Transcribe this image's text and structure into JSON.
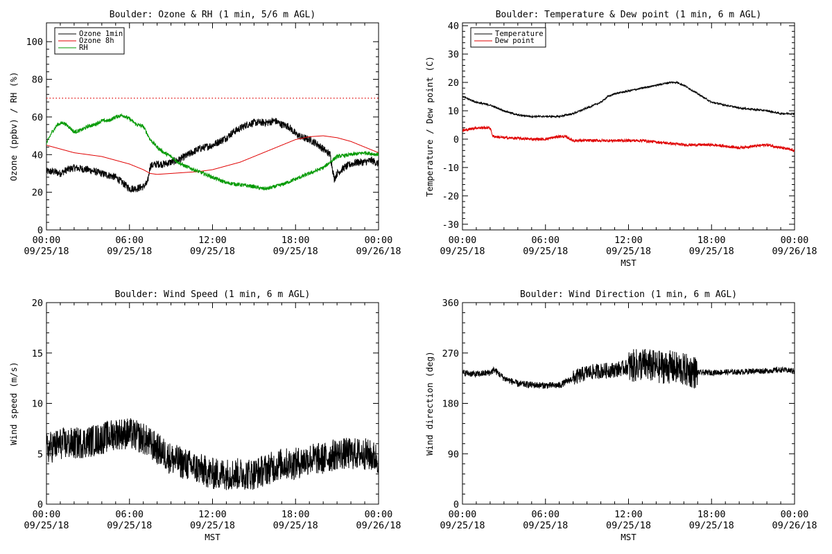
{
  "colors": {
    "black": "#000000",
    "red": "#e00000",
    "green": "#009900"
  },
  "chart_data": [
    {
      "type": "line",
      "title": "Boulder: Ozone & RH (1 min, 5/6 m AGL)",
      "xlabel": "",
      "ylabel": "Ozone (ppbv) / RH (%)",
      "x_unit": "hours since 09/25/18 00:00 MST",
      "xlim": [
        0,
        24
      ],
      "ylim": [
        0,
        110
      ],
      "yticks": [
        0,
        20,
        40,
        60,
        80,
        100
      ],
      "xticks": [
        {
          "time": "00:00",
          "date": "09/25/18"
        },
        {
          "time": "06:00",
          "date": "09/25/18"
        },
        {
          "time": "12:00",
          "date": "09/25/18"
        },
        {
          "time": "18:00",
          "date": "09/25/18"
        },
        {
          "time": "00:00",
          "date": "09/26/18"
        }
      ],
      "legend_position": "top-left",
      "hline": {
        "value": 70,
        "style": "dotted",
        "color": "#e00000"
      },
      "series": [
        {
          "name": "Ozone 1min",
          "color": "#000000",
          "noise": 2,
          "x": [
            0,
            0.5,
            1,
            1.5,
            2,
            3,
            3.5,
            4,
            4.5,
            5,
            5.5,
            6,
            6.5,
            7,
            7.3,
            7.5,
            8,
            8.5,
            9,
            9.5,
            10,
            10.5,
            11,
            11.5,
            12,
            12.5,
            13,
            13.5,
            14,
            14.5,
            15,
            15.5,
            16,
            16.5,
            17,
            17.5,
            18,
            18.5,
            19,
            19.5,
            20,
            20.5,
            20.8,
            21,
            21.5,
            22,
            22.5,
            23,
            23.5,
            24
          ],
          "y": [
            31,
            31,
            30,
            32,
            33,
            32,
            31,
            30,
            29,
            28,
            25,
            22,
            22,
            23,
            25,
            34,
            35,
            35,
            36,
            37,
            39,
            41,
            43,
            44,
            45,
            47,
            49,
            52,
            54,
            56,
            57,
            57,
            57,
            58,
            56,
            55,
            51,
            49,
            48,
            46,
            43,
            40,
            27,
            30,
            33,
            35,
            36,
            36,
            37,
            35
          ]
        },
        {
          "name": "Ozone 8h",
          "color": "#e00000",
          "noise": 0,
          "x": [
            0,
            1,
            2,
            3,
            4,
            5,
            6,
            7,
            7.5,
            8,
            9,
            10,
            11,
            12,
            13,
            14,
            15,
            16,
            17,
            18,
            19,
            20,
            21,
            22,
            23,
            24
          ],
          "y": [
            45,
            43,
            41,
            40,
            39,
            37,
            35,
            32,
            30,
            29.5,
            30,
            30.5,
            31,
            32,
            34,
            36,
            39,
            42,
            45,
            48,
            49.5,
            50,
            49,
            47,
            44,
            41
          ]
        },
        {
          "name": "RH",
          "color": "#009900",
          "noise": 1,
          "x": [
            0,
            0.4,
            0.8,
            1.2,
            1.6,
            2,
            2.5,
            3,
            3.5,
            4,
            4.5,
            5,
            5.5,
            6,
            6.5,
            7,
            7.5,
            8,
            8.5,
            9,
            9.5,
            10,
            11,
            12,
            13,
            14,
            15,
            15.5,
            16,
            17,
            18,
            19,
            20,
            21,
            22,
            23,
            24
          ],
          "y": [
            46,
            52,
            56,
            57,
            55,
            52,
            53,
            55,
            56,
            58,
            58,
            60,
            61,
            59,
            56,
            55,
            48,
            44,
            41,
            39,
            36,
            34,
            31,
            28,
            25,
            24,
            23,
            22,
            22,
            24,
            27,
            30,
            33,
            39,
            40,
            41,
            40
          ]
        }
      ]
    },
    {
      "type": "line",
      "title": "Boulder: Temperature & Dew point (1 min, 6 m AGL)",
      "xlabel": "MST",
      "ylabel": "Temperature / Dew point (C)",
      "x_unit": "hours since 09/25/18 00:00 MST",
      "xlim": [
        0,
        24
      ],
      "ylim": [
        -32,
        41
      ],
      "yticks": [
        -30,
        -20,
        -10,
        0,
        10,
        20,
        30,
        40
      ],
      "xticks": [
        {
          "time": "00:00",
          "date": "09/25/18"
        },
        {
          "time": "06:00",
          "date": "09/25/18"
        },
        {
          "time": "12:00",
          "date": "09/25/18"
        },
        {
          "time": "18:00",
          "date": "09/25/18"
        },
        {
          "time": "00:00",
          "date": "09/26/18"
        }
      ],
      "legend_position": "top-left",
      "series": [
        {
          "name": "Temperature",
          "color": "#000000",
          "noise": 0.3,
          "x": [
            0,
            1,
            2,
            3,
            4,
            5,
            6,
            7,
            8,
            9,
            9.5,
            10,
            10.5,
            11,
            12,
            13,
            14,
            15,
            15.5,
            16,
            17,
            18,
            19,
            20,
            21,
            22,
            23,
            24
          ],
          "y": [
            15,
            13,
            12,
            10,
            8.5,
            8,
            8,
            8,
            9,
            11,
            12,
            13,
            15,
            16,
            17,
            18,
            19,
            20,
            20,
            19,
            16,
            13,
            12,
            11,
            10.5,
            10,
            9,
            9
          ]
        },
        {
          "name": "Dew point",
          "color": "#e00000",
          "noise": 0.5,
          "x": [
            0,
            1,
            2,
            2.2,
            3,
            4,
            5,
            6,
            7,
            7.5,
            8,
            9,
            10,
            11,
            12,
            13,
            14,
            15,
            16,
            17,
            18,
            19,
            20,
            21,
            22,
            23,
            24
          ],
          "y": [
            3,
            4,
            4,
            1,
            0.5,
            0.3,
            0,
            0,
            1,
            0.8,
            -0.5,
            -0.5,
            -0.5,
            -0.5,
            -0.5,
            -0.5,
            -1,
            -1.5,
            -2,
            -2,
            -2,
            -2.5,
            -3,
            -2.5,
            -2,
            -3,
            -4
          ]
        }
      ]
    },
    {
      "type": "line",
      "title": "Boulder: Wind Speed (1 min, 6 m AGL)",
      "xlabel": "MST",
      "ylabel": "Wind speed (m/s)",
      "x_unit": "hours since 09/25/18 00:00 MST",
      "xlim": [
        0,
        24
      ],
      "ylim": [
        0,
        20
      ],
      "yticks": [
        0,
        5,
        10,
        15,
        20
      ],
      "xticks": [
        {
          "time": "00:00",
          "date": "09/25/18"
        },
        {
          "time": "06:00",
          "date": "09/25/18"
        },
        {
          "time": "12:00",
          "date": "09/25/18"
        },
        {
          "time": "18:00",
          "date": "09/25/18"
        },
        {
          "time": "00:00",
          "date": "09/26/18"
        }
      ],
      "series": [
        {
          "name": "",
          "color": "#000000",
          "noise": 1.6,
          "x": [
            0,
            1,
            2,
            3,
            4,
            5,
            6,
            7,
            8,
            9,
            10,
            11,
            12,
            13,
            14,
            15,
            16,
            17,
            18,
            19,
            20,
            21,
            22,
            23,
            24
          ],
          "y": [
            5.5,
            6,
            6,
            6.2,
            6.5,
            7,
            7,
            6.5,
            5.5,
            4.5,
            4,
            3.5,
            3,
            3,
            3,
            3,
            3.5,
            4,
            4,
            4.5,
            4.5,
            5,
            5,
            5,
            4.5
          ]
        }
      ]
    },
    {
      "type": "line",
      "title": "Boulder: Wind Direction (1 min, 6 m AGL)",
      "xlabel": "MST",
      "ylabel": "Wind direction (deg)",
      "x_unit": "hours since 09/25/18 00:00 MST",
      "xlim": [
        0,
        24
      ],
      "ylim": [
        0,
        360
      ],
      "yticks": [
        0,
        90,
        180,
        270,
        360
      ],
      "xticks": [
        {
          "time": "00:00",
          "date": "09/25/18"
        },
        {
          "time": "06:00",
          "date": "09/25/18"
        },
        {
          "time": "12:00",
          "date": "09/25/18"
        },
        {
          "time": "18:00",
          "date": "09/25/18"
        },
        {
          "time": "00:00",
          "date": "09/26/18"
        }
      ],
      "series": [
        {
          "name": "",
          "color": "#000000",
          "noise": 6,
          "x": [
            0,
            1,
            2,
            2.3,
            3,
            4,
            5,
            6,
            7,
            8,
            9,
            10,
            11,
            12,
            13,
            14,
            15,
            16,
            17,
            18,
            19,
            20,
            21,
            22,
            23,
            24
          ],
          "y": [
            235,
            232,
            235,
            240,
            225,
            215,
            213,
            212,
            212,
            225,
            235,
            238,
            240,
            245,
            250,
            245,
            245,
            240,
            235,
            235,
            236,
            236,
            238,
            238,
            240,
            238
          ],
          "noise_by_hour": [
            [
              0,
              8,
              6
            ],
            [
              8,
              12,
              14
            ],
            [
              12,
              17,
              30
            ],
            [
              17,
              24,
              5
            ]
          ]
        }
      ]
    }
  ]
}
